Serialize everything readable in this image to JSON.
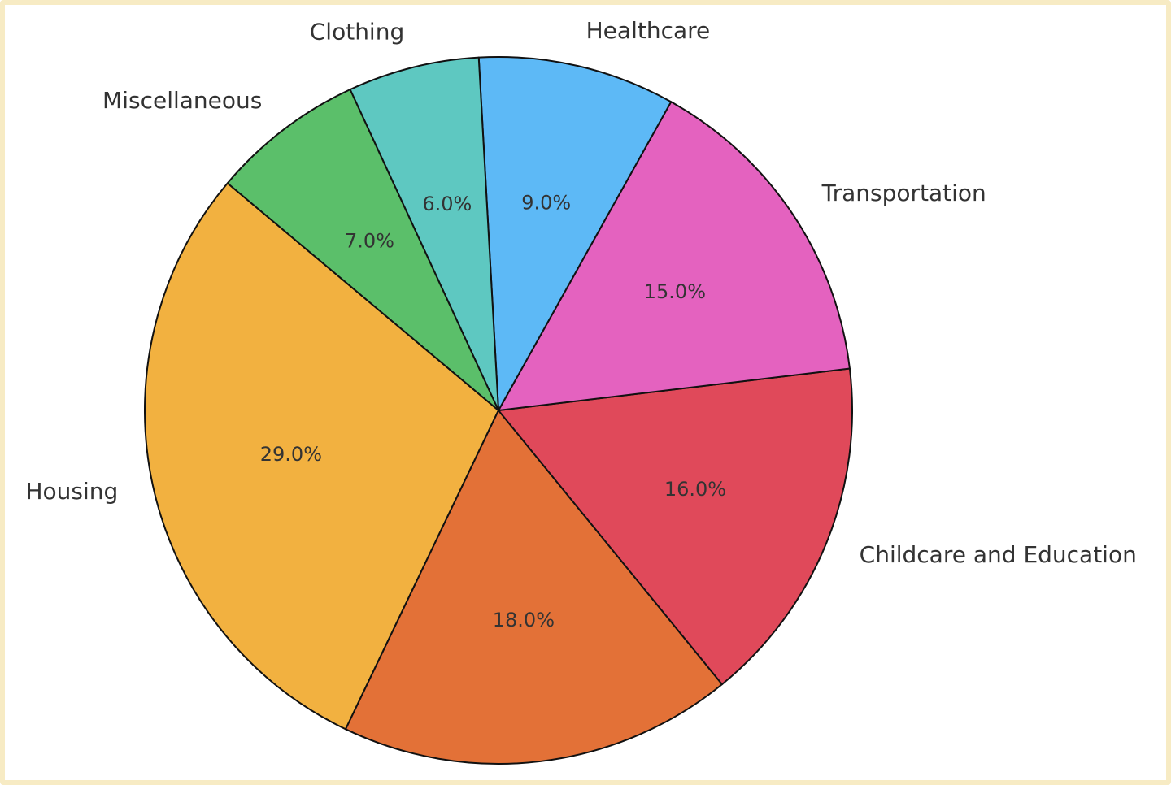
{
  "chart_data": {
    "type": "pie",
    "categories": [
      "Housing",
      null,
      "Childcare and Education",
      "Transportation",
      "Healthcare",
      "Clothing",
      "Miscellaneous"
    ],
    "values": [
      29,
      18,
      16,
      15,
      9,
      6,
      7
    ],
    "value_labels": [
      "29.0%",
      "18.0%",
      "16.0%",
      "15.0%",
      "9.0%",
      "6.0%",
      "7.0%"
    ],
    "colors": [
      "#f2b140",
      "#e37137",
      "#e0495a",
      "#e462bf",
      "#5db9f6",
      "#5ec8c1",
      "#5bbf6a"
    ],
    "startangle": 140
  }
}
